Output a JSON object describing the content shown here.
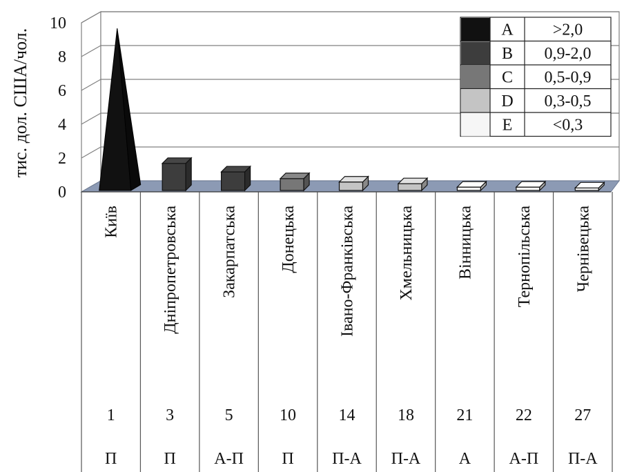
{
  "chart_data": {
    "type": "bar",
    "ylabel": "тис. дол. США/чол.",
    "ylim": [
      0,
      10
    ],
    "yticks": [
      "0",
      "2",
      "4",
      "6",
      "8",
      "10"
    ],
    "grid": true,
    "legend_position": "top-right",
    "categories": [
      "Київ",
      "Дніпропетровська",
      "Закарпатська",
      "Донецька",
      "Івано-Франківська",
      "Хмельницька",
      "Вінницька",
      "Тернопільська",
      "Чернівецька"
    ],
    "values": [
      9.5,
      1.6,
      1.1,
      0.7,
      0.5,
      0.4,
      0.2,
      0.2,
      0.15
    ],
    "classes": [
      "A",
      "B",
      "B",
      "C",
      "D",
      "D",
      "E",
      "E",
      "E"
    ],
    "ranks": [
      "1",
      "3",
      "5",
      "10",
      "14",
      "18",
      "21",
      "22",
      "27"
    ],
    "types": [
      "П",
      "П",
      "А-П",
      "П",
      "П-А",
      "П-А",
      "А",
      "А-П",
      "П-А"
    ],
    "legend": [
      {
        "code": "A",
        "range": ">2,0",
        "color": "#111111"
      },
      {
        "code": "B",
        "range": "0,9-2,0",
        "color": "#3d3d3d"
      },
      {
        "code": "C",
        "range": "0,5-0,9",
        "color": "#777777"
      },
      {
        "code": "D",
        "range": "0,3-0,5",
        "color": "#c4c4c4"
      },
      {
        "code": "E",
        "range": "<0,3",
        "color": "#f6f6f6"
      }
    ],
    "floor_color": "#8c9ab4"
  }
}
